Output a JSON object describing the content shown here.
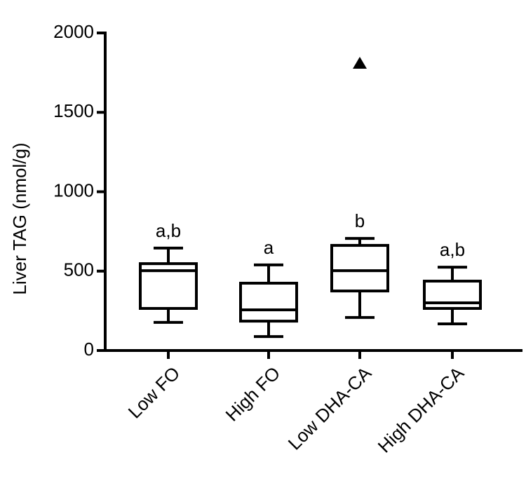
{
  "chart_data": {
    "type": "box",
    "y_label": "Liver TAG (nmol/g)",
    "categories": [
      "Low FO",
      "High FO",
      "Low DHA-CA",
      "High DHA-CA"
    ],
    "whisker_low": [
      177,
      88,
      208,
      168
    ],
    "q1": [
      265,
      185,
      375,
      265
    ],
    "median": [
      503,
      256,
      503,
      300
    ],
    "q3": [
      547,
      424,
      662,
      437
    ],
    "whisker_high": [
      645,
      539,
      706,
      525
    ],
    "outliers": [
      [],
      [],
      [
        1810
      ],
      []
    ],
    "annotations": [
      "a,b",
      "a",
      "b",
      "a,b"
    ],
    "color": "#000000",
    "ylim": [
      0,
      2000
    ],
    "yticks": [
      0,
      500,
      1000,
      1500,
      2000
    ],
    "grid": false
  }
}
